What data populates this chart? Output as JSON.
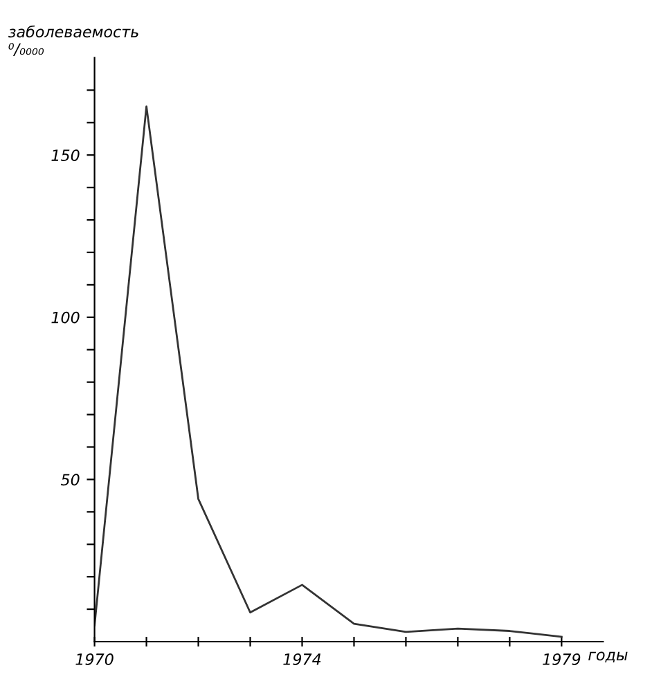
{
  "chart_data": {
    "type": "line",
    "ylabel": "заболеваемость\n⁰/₀₀₀₀",
    "xlabel": "годы",
    "x": [
      1970,
      1971,
      1972,
      1973,
      1974,
      1975,
      1976,
      1977,
      1978,
      1979
    ],
    "series": [
      {
        "color": "#333333",
        "values": [
          5,
          165,
          44,
          9,
          17.5,
          5.5,
          3,
          4,
          3.3,
          1.5
        ]
      }
    ],
    "xlim": [
      1970,
      1979.8
    ],
    "ylim": [
      0,
      180
    ],
    "xticks": [
      1970,
      {
        "value": 1971,
        "label": null
      },
      {
        "value": 1972,
        "label": null
      },
      {
        "value": 1973,
        "label": null
      },
      1974,
      {
        "value": 1975,
        "label": null
      },
      {
        "value": 1976,
        "label": null
      },
      {
        "value": 1977,
        "label": null
      },
      {
        "value": 1978,
        "label": null
      },
      1979
    ],
    "yticks": [
      {
        "value": 10,
        "label": null
      },
      {
        "value": 20,
        "label": null
      },
      {
        "value": 30,
        "label": null
      },
      {
        "value": 40,
        "label": null
      },
      50,
      {
        "value": 60,
        "label": null
      },
      {
        "value": 70,
        "label": null
      },
      {
        "value": 80,
        "label": null
      },
      {
        "value": 90,
        "label": null
      },
      100,
      {
        "value": 110,
        "label": null
      },
      {
        "value": 120,
        "label": null
      },
      {
        "value": 130,
        "label": null
      },
      {
        "value": 140,
        "label": null
      },
      150,
      {
        "value": 160,
        "label": null
      },
      {
        "value": 170,
        "label": null
      }
    ],
    "marker": "none",
    "line_style": "solid"
  }
}
